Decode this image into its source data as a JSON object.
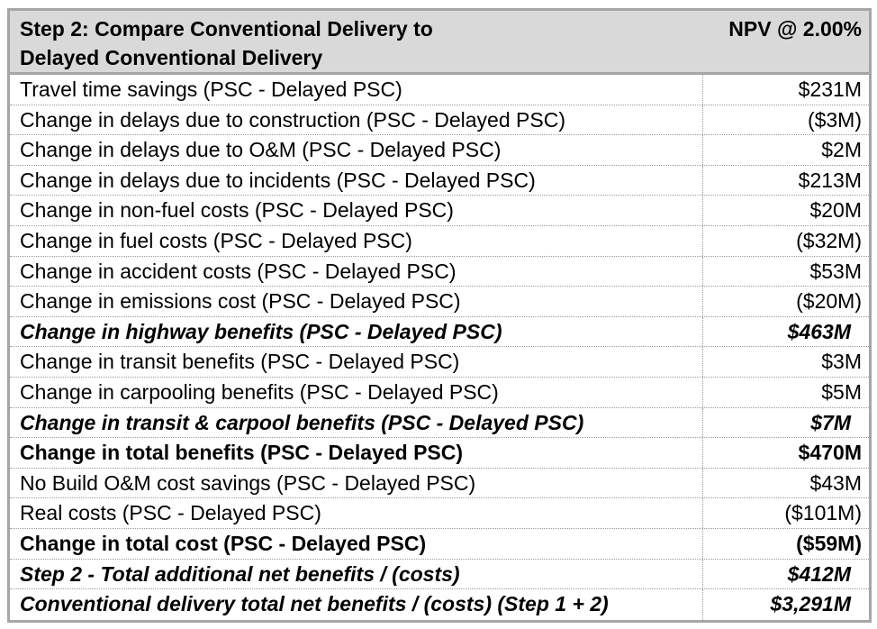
{
  "header": {
    "title_line1": "Step 2: Compare Conventional Delivery to",
    "title_line2": "Delayed Conventional Delivery",
    "value_label": "NPV @ 2.00%"
  },
  "rows": [
    {
      "label": "Travel time savings (PSC - Delayed PSC)",
      "value": "$231M",
      "style": "normal"
    },
    {
      "label": "Change in delays due to construction (PSC - Delayed PSC)",
      "value": "($3M)",
      "style": "normal"
    },
    {
      "label": "Change in delays due to O&M (PSC - Delayed PSC)",
      "value": "$2M",
      "style": "normal"
    },
    {
      "label": "Change in delays due to incidents (PSC - Delayed PSC)",
      "value": "$213M",
      "style": "normal"
    },
    {
      "label": "Change in non-fuel costs (PSC - Delayed PSC)",
      "value": "$20M",
      "style": "normal"
    },
    {
      "label": "Change in fuel costs (PSC - Delayed PSC)",
      "value": "($32M)",
      "style": "normal"
    },
    {
      "label": "Change in accident costs (PSC - Delayed PSC)",
      "value": "$53M",
      "style": "normal"
    },
    {
      "label": "Change in emissions cost (PSC - Delayed PSC)",
      "value": "($20M)",
      "style": "normal"
    },
    {
      "label": "Change in highway benefits (PSC - Delayed PSC)",
      "value": "$463M",
      "style": "bi"
    },
    {
      "label": "Change in transit benefits (PSC - Delayed PSC)",
      "value": "$3M",
      "style": "normal"
    },
    {
      "label": "Change in carpooling benefits (PSC - Delayed PSC)",
      "value": "$5M",
      "style": "normal"
    },
    {
      "label": "Change in transit & carpool benefits (PSC - Delayed PSC)",
      "value": "$7M",
      "style": "bi"
    },
    {
      "label": "Change in total benefits (PSC - Delayed PSC)",
      "value": "$470M",
      "style": "bold"
    },
    {
      "label": "No Build O&M cost savings (PSC - Delayed PSC)",
      "value": "$43M",
      "style": "normal"
    },
    {
      "label": "Real costs (PSC - Delayed PSC)",
      "value": "($101M)",
      "style": "normal"
    },
    {
      "label": "Change in total cost (PSC - Delayed PSC)",
      "value": "($59M)",
      "style": "bold"
    },
    {
      "label": "Step 2 - Total additional net benefits / (costs)",
      "value": "$412M",
      "style": "bi"
    },
    {
      "label": "Conventional delivery total net benefits / (costs) (Step 1 + 2)",
      "value": "$3,291M",
      "style": "bi"
    }
  ]
}
